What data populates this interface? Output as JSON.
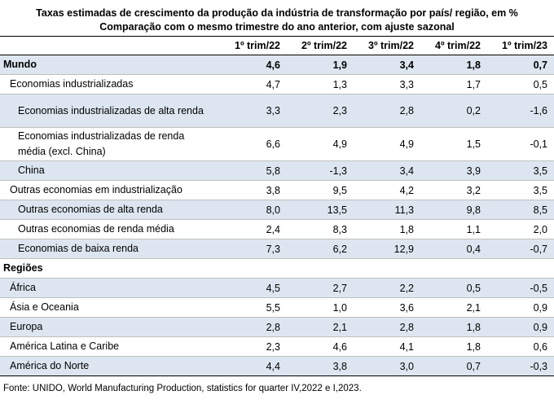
{
  "title_line1": "Taxas estimadas de crescimento da produção da indústria de transformação por país/ região, em %",
  "title_line2": "Comparação com o mesmo trimestre do ano anterior, com ajuste sazonal",
  "columns": [
    "1º trim/22",
    "2º trim/22",
    "3º trim/22",
    "4º trim/22",
    "1º trim/23"
  ],
  "rows": [
    {
      "label": "Mundo",
      "values": [
        "4,6",
        "1,9",
        "3,4",
        "1,8",
        "0,7"
      ]
    },
    {
      "label": "Economias industrializadas",
      "values": [
        "4,7",
        "1,3",
        "3,3",
        "1,7",
        "0,5"
      ]
    },
    {
      "label": "Economias industrializadas de alta renda",
      "values": [
        "3,3",
        "2,3",
        "2,8",
        "0,2",
        "-1,6"
      ]
    },
    {
      "label": "Economias industrializadas de renda média (excl. China)",
      "values": [
        "6,6",
        "4,9",
        "4,9",
        "1,5",
        "-0,1"
      ]
    },
    {
      "label": "China",
      "values": [
        "5,8",
        "-1,3",
        "3,4",
        "3,9",
        "3,5"
      ]
    },
    {
      "label": "Outras economias em industrialização",
      "values": [
        "3,8",
        "9,5",
        "4,2",
        "3,2",
        "3,5"
      ]
    },
    {
      "label": "Outras economias de alta renda",
      "values": [
        "8,0",
        "13,5",
        "11,3",
        "9,8",
        "8,5"
      ]
    },
    {
      "label": "Outras economias de renda média",
      "values": [
        "2,4",
        "8,3",
        "1,8",
        "1,1",
        "2,0"
      ]
    },
    {
      "label": "Economias de baixa renda",
      "values": [
        "7,3",
        "6,2",
        "12,9",
        "0,4",
        "-0,7"
      ]
    },
    {
      "label": "Regiões",
      "values": [
        "",
        "",
        "",
        "",
        ""
      ]
    },
    {
      "label": "África",
      "values": [
        "4,5",
        "2,7",
        "2,2",
        "0,5",
        "-0,5"
      ]
    },
    {
      "label": "Ásia e Oceania",
      "values": [
        "5,5",
        "1,0",
        "3,6",
        "2,1",
        "0,9"
      ]
    },
    {
      "label": "Europa",
      "values": [
        "2,8",
        "2,1",
        "2,8",
        "1,8",
        "0,9"
      ]
    },
    {
      "label": "América Latina e Caribe",
      "values": [
        "2,3",
        "4,6",
        "4,1",
        "1,8",
        "0,6"
      ]
    },
    {
      "label": "América do Norte",
      "values": [
        "4,4",
        "3,8",
        "3,0",
        "0,7",
        "-0,3"
      ]
    }
  ],
  "source": "Fonte: UNIDO, World Manufacturing Production, statistics for quarter IV,2022 e I,2023.",
  "colors": {
    "row_shade": "#dde6f0",
    "row_border": "#bfbfbf"
  }
}
